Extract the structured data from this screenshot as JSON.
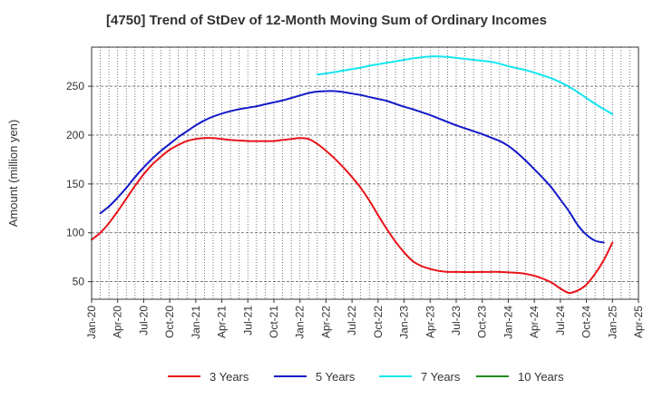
{
  "title": "[4750]  Trend of StDev of 12-Month Moving Sum of Ordinary Incomes",
  "chart_data": {
    "type": "line",
    "title": "[4750]  Trend of StDev of 12-Month Moving Sum of Ordinary Incomes",
    "xlabel": "",
    "ylabel": "Amount (million yen)",
    "x_tick_labels": [
      "Jan-20",
      "Apr-20",
      "Jul-20",
      "Oct-20",
      "Jan-21",
      "Apr-21",
      "Jul-21",
      "Oct-21",
      "Jan-22",
      "Apr-22",
      "Jul-22",
      "Oct-22",
      "Jan-23",
      "Apr-23",
      "Jul-23",
      "Oct-23",
      "Jan-24",
      "Apr-24",
      "Jul-24",
      "Oct-24",
      "Jan-25",
      "Apr-25"
    ],
    "x_range": [
      "Jan-20",
      "Apr-25"
    ],
    "y_ticks": [
      50,
      100,
      150,
      200,
      250
    ],
    "ylim": [
      32,
      290
    ],
    "grid": true,
    "legend_position": "bottom",
    "series": [
      {
        "name": "3 Years",
        "color": "#e8141a",
        "points": [
          [
            "2020-01",
            93
          ],
          [
            "2020-02",
            100
          ],
          [
            "2020-03",
            110
          ],
          [
            "2020-04",
            122
          ],
          [
            "2020-05",
            135
          ],
          [
            "2020-06",
            148
          ],
          [
            "2020-07",
            160
          ],
          [
            "2020-08",
            170
          ],
          [
            "2020-09",
            178
          ],
          [
            "2020-10",
            185
          ],
          [
            "2020-11",
            190
          ],
          [
            "2020-12",
            194
          ],
          [
            "2021-01",
            196
          ],
          [
            "2021-02",
            197
          ],
          [
            "2021-03",
            197
          ],
          [
            "2021-04",
            196
          ],
          [
            "2021-05",
            195
          ],
          [
            "2021-06",
            194.5
          ],
          [
            "2021-07",
            194
          ],
          [
            "2021-08",
            193.8
          ],
          [
            "2021-09",
            193.8
          ],
          [
            "2021-10",
            194
          ],
          [
            "2021-11",
            195
          ],
          [
            "2021-12",
            196
          ],
          [
            "2022-01",
            197
          ],
          [
            "2022-02",
            196
          ],
          [
            "2022-03",
            191
          ],
          [
            "2022-04",
            184
          ],
          [
            "2022-05",
            176
          ],
          [
            "2022-06",
            167
          ],
          [
            "2022-07",
            157
          ],
          [
            "2022-08",
            146
          ],
          [
            "2022-09",
            133
          ],
          [
            "2022-10",
            118
          ],
          [
            "2022-11",
            104
          ],
          [
            "2022-12",
            91
          ],
          [
            "2023-01",
            80
          ],
          [
            "2023-02",
            71
          ],
          [
            "2023-03",
            66
          ],
          [
            "2023-04",
            63
          ],
          [
            "2023-05",
            61
          ],
          [
            "2023-06",
            60
          ],
          [
            "2023-07",
            60
          ],
          [
            "2023-08",
            59.8
          ],
          [
            "2023-09",
            59.8
          ],
          [
            "2023-10",
            60
          ],
          [
            "2023-11",
            60
          ],
          [
            "2023-12",
            60
          ],
          [
            "2024-01",
            59.5
          ],
          [
            "2024-02",
            59
          ],
          [
            "2024-03",
            58
          ],
          [
            "2024-04",
            56
          ],
          [
            "2024-05",
            53
          ],
          [
            "2024-06",
            49
          ],
          [
            "2024-07",
            43
          ],
          [
            "2024-08",
            38.5
          ],
          [
            "2024-09",
            41
          ],
          [
            "2024-10",
            47
          ],
          [
            "2024-11",
            58
          ],
          [
            "2024-12",
            72
          ],
          [
            "2025-01",
            90
          ]
        ]
      },
      {
        "name": "5 Years",
        "color": "#1419c8",
        "points": [
          [
            "2020-02",
            120
          ],
          [
            "2020-03",
            127
          ],
          [
            "2020-04",
            136
          ],
          [
            "2020-05",
            146
          ],
          [
            "2020-06",
            157
          ],
          [
            "2020-07",
            167
          ],
          [
            "2020-08",
            176
          ],
          [
            "2020-09",
            184
          ],
          [
            "2020-10",
            191
          ],
          [
            "2020-11",
            198
          ],
          [
            "2020-12",
            204
          ],
          [
            "2021-01",
            210
          ],
          [
            "2021-02",
            215
          ],
          [
            "2021-03",
            219
          ],
          [
            "2021-04",
            222
          ],
          [
            "2021-05",
            224.5
          ],
          [
            "2021-06",
            226.5
          ],
          [
            "2021-07",
            228
          ],
          [
            "2021-08",
            229.5
          ],
          [
            "2021-09",
            231.5
          ],
          [
            "2021-10",
            233.5
          ],
          [
            "2021-11",
            235.5
          ],
          [
            "2021-12",
            238
          ],
          [
            "2022-01",
            240.5
          ],
          [
            "2022-02",
            243
          ],
          [
            "2022-03",
            244.5
          ],
          [
            "2022-04",
            245
          ],
          [
            "2022-05",
            245
          ],
          [
            "2022-06",
            244
          ],
          [
            "2022-07",
            242.5
          ],
          [
            "2022-08",
            241
          ],
          [
            "2022-09",
            239
          ],
          [
            "2022-10",
            237
          ],
          [
            "2022-11",
            235
          ],
          [
            "2022-12",
            232
          ],
          [
            "2023-01",
            229
          ],
          [
            "2023-02",
            226.5
          ],
          [
            "2023-03",
            223.5
          ],
          [
            "2023-04",
            220.5
          ],
          [
            "2023-05",
            217
          ],
          [
            "2023-06",
            213.5
          ],
          [
            "2023-07",
            210
          ],
          [
            "2023-08",
            207
          ],
          [
            "2023-09",
            204
          ],
          [
            "2023-10",
            201
          ],
          [
            "2023-11",
            197.5
          ],
          [
            "2023-12",
            194
          ],
          [
            "2024-01",
            189
          ],
          [
            "2024-02",
            182
          ],
          [
            "2024-03",
            174
          ],
          [
            "2024-04",
            165
          ],
          [
            "2024-05",
            156
          ],
          [
            "2024-06",
            146
          ],
          [
            "2024-07",
            134
          ],
          [
            "2024-08",
            122
          ],
          [
            "2024-09",
            108
          ],
          [
            "2024-10",
            98
          ],
          [
            "2024-11",
            92
          ],
          [
            "2024-12",
            90
          ]
        ]
      },
      {
        "name": "7 Years",
        "color": "#14e6f0",
        "points": [
          [
            "2022-03",
            262
          ],
          [
            "2022-04",
            263
          ],
          [
            "2022-05",
            264.5
          ],
          [
            "2022-06",
            266
          ],
          [
            "2022-07",
            267.5
          ],
          [
            "2022-08",
            269
          ],
          [
            "2022-09",
            271
          ],
          [
            "2022-10",
            272.5
          ],
          [
            "2022-11",
            274
          ],
          [
            "2022-12",
            275.5
          ],
          [
            "2023-01",
            277
          ],
          [
            "2023-02",
            278.5
          ],
          [
            "2023-03",
            279.5
          ],
          [
            "2023-04",
            280.5
          ],
          [
            "2023-05",
            280.5
          ],
          [
            "2023-06",
            280
          ],
          [
            "2023-07",
            279
          ],
          [
            "2023-08",
            278
          ],
          [
            "2023-09",
            277
          ],
          [
            "2023-10",
            276
          ],
          [
            "2023-11",
            275
          ],
          [
            "2023-12",
            273
          ],
          [
            "2024-01",
            270.5
          ],
          [
            "2024-02",
            268.5
          ],
          [
            "2024-03",
            266.5
          ],
          [
            "2024-04",
            264
          ],
          [
            "2024-05",
            261
          ],
          [
            "2024-06",
            258
          ],
          [
            "2024-07",
            254
          ],
          [
            "2024-08",
            249.5
          ],
          [
            "2024-09",
            244
          ],
          [
            "2024-10",
            238
          ],
          [
            "2024-11",
            232
          ],
          [
            "2024-12",
            226.5
          ],
          [
            "2025-01",
            221.5
          ]
        ]
      },
      {
        "name": "10 Years",
        "color": "#1e8c1e",
        "points": []
      }
    ]
  }
}
